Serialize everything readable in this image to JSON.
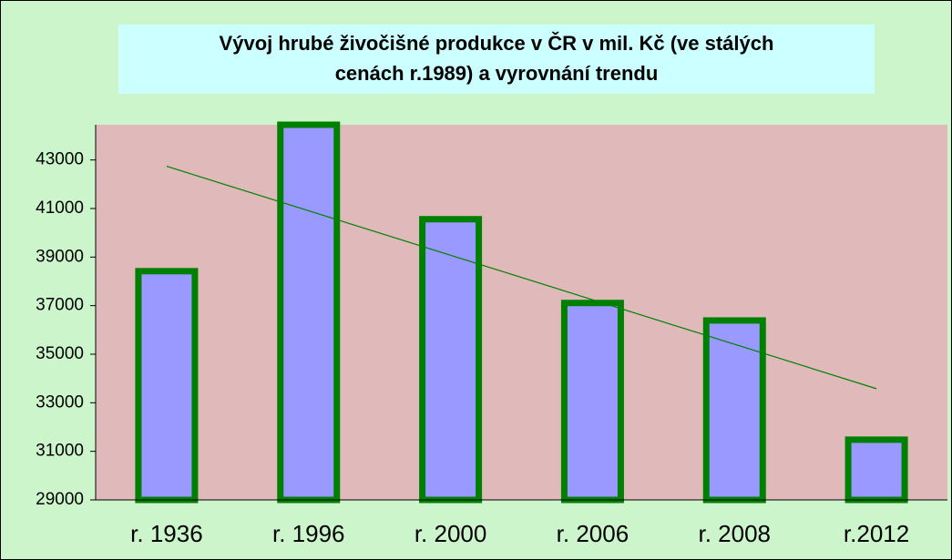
{
  "chart_data": {
    "type": "bar",
    "title": [
      "Vývoj hrubé živočišné produkce v ČR v mil. Kč (ve stálých",
      "cenách r.1989) a vyrovnání trendu"
    ],
    "categories": [
      "r. 1936",
      "r. 1996",
      "r. 2000",
      "r. 2006",
      "r. 2008",
      "r.2012"
    ],
    "values": [
      38420,
      44450,
      40560,
      37110,
      36390,
      31480
    ],
    "color": "#9999ff",
    "edge_color": "#008000",
    "trend_values": [
      42740,
      40908,
      39076,
      37244,
      35412,
      33580
    ],
    "trend_color": "#008000",
    "ylim": [
      29000,
      44450
    ],
    "yticks": [
      29000,
      31000,
      33000,
      35000,
      37000,
      39000,
      41000,
      43000
    ],
    "grid": false
  }
}
